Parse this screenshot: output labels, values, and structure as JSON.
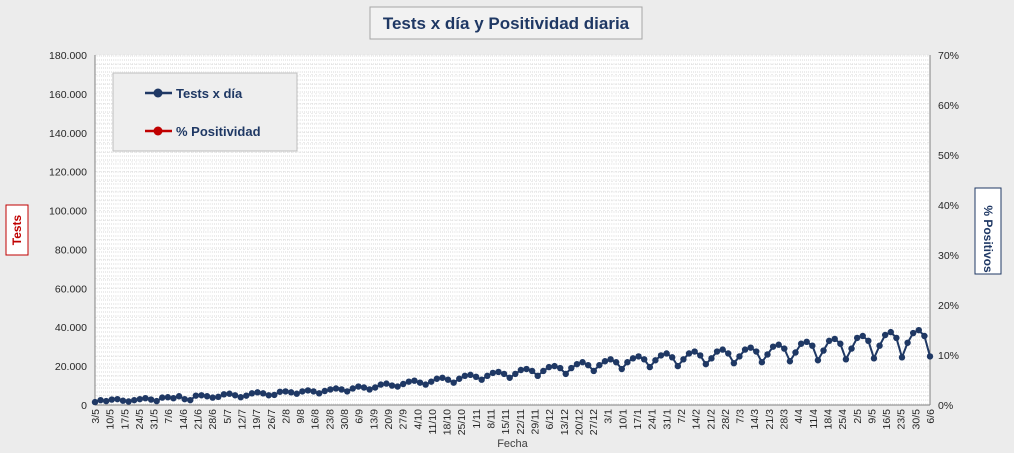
{
  "chart_data": {
    "type": "line",
    "title": "Tests x día y Positividad diaria",
    "xlabel": "Fecha",
    "ylabel": "Tests",
    "y2label": "% Positivos",
    "ylim": [
      0,
      180000
    ],
    "y2lim": [
      0,
      70
    ],
    "y_ticks": [
      "0",
      "20.000",
      "40.000",
      "60.000",
      "80.000",
      "100.000",
      "120.000",
      "140.000",
      "160.000",
      "180.000"
    ],
    "y2_ticks": [
      "0%",
      "10%",
      "20%",
      "30%",
      "40%",
      "50%",
      "60%",
      "70%"
    ],
    "x_tick_labels": [
      "3/5",
      "10/5",
      "17/5",
      "24/5",
      "31/5",
      "7/6",
      "14/6",
      "21/6",
      "28/6",
      "5/7",
      "12/7",
      "19/7",
      "26/7",
      "2/8",
      "9/8",
      "16/8",
      "23/8",
      "30/8",
      "6/9",
      "13/9",
      "20/9",
      "27/9",
      "4/10",
      "11/10",
      "18/10",
      "25/10",
      "1/11",
      "8/11",
      "15/11",
      "22/11",
      "29/11",
      "6/12",
      "13/12",
      "20/12",
      "27/12",
      "3/1",
      "10/1",
      "17/1",
      "24/1",
      "31/1",
      "7/2",
      "14/2",
      "21/2",
      "28/2",
      "7/3",
      "14/3",
      "21/3",
      "28/3",
      "4/4",
      "11/4",
      "18/4",
      "25/4",
      "2/5",
      "9/5",
      "16/5",
      "23/5",
      "30/5",
      "6/6"
    ],
    "grid": true,
    "legend_position": "top-left",
    "series": [
      {
        "name": "Tests x día",
        "axis": "left",
        "color": "#1f3864",
        "values": [
          1500,
          2500,
          2000,
          2800,
          3000,
          2200,
          1800,
          2500,
          3000,
          3500,
          2800,
          2000,
          3800,
          4000,
          3500,
          4500,
          3000,
          2500,
          4800,
          5000,
          4500,
          3800,
          4200,
          5500,
          5800,
          5000,
          4000,
          4800,
          6000,
          6500,
          6000,
          5000,
          5200,
          6800,
          7000,
          6500,
          5800,
          7000,
          7500,
          7000,
          6000,
          7200,
          8000,
          8500,
          8000,
          7000,
          8500,
          9500,
          9000,
          8000,
          9000,
          10500,
          11000,
          10000,
          9500,
          10800,
          12000,
          12500,
          11500,
          10500,
          12000,
          13500,
          14000,
          13000,
          11500,
          13500,
          15000,
          15500,
          14500,
          13000,
          15000,
          16500,
          17000,
          16000,
          14000,
          16000,
          18000,
          18500,
          17500,
          15000,
          17500,
          19500,
          20000,
          19000,
          16000,
          19000,
          21000,
          22000,
          20500,
          17500,
          20500,
          22500,
          23500,
          22000,
          18500,
          22000,
          24000,
          25000,
          23500,
          19500,
          23000,
          25500,
          26500,
          24500,
          20000,
          23500,
          26500,
          27500,
          25500,
          21000,
          24000,
          27500,
          28500,
          26500,
          21500,
          25000,
          28500,
          29500,
          27500,
          22000,
          26000,
          30000,
          31000,
          29000,
          22500,
          27000,
          31500,
          32500,
          30500,
          23000,
          28000,
          33000,
          34000,
          31500,
          23500,
          29000,
          34500,
          35500,
          33000,
          24000,
          30500,
          36000,
          37500,
          34500,
          24500,
          32000,
          37000,
          38500,
          35500,
          25000
        ],
        "values_note": ""
      },
      {
        "name": "% Positividad",
        "axis": "right",
        "color": "#c00000",
        "values": []
      }
    ]
  }
}
